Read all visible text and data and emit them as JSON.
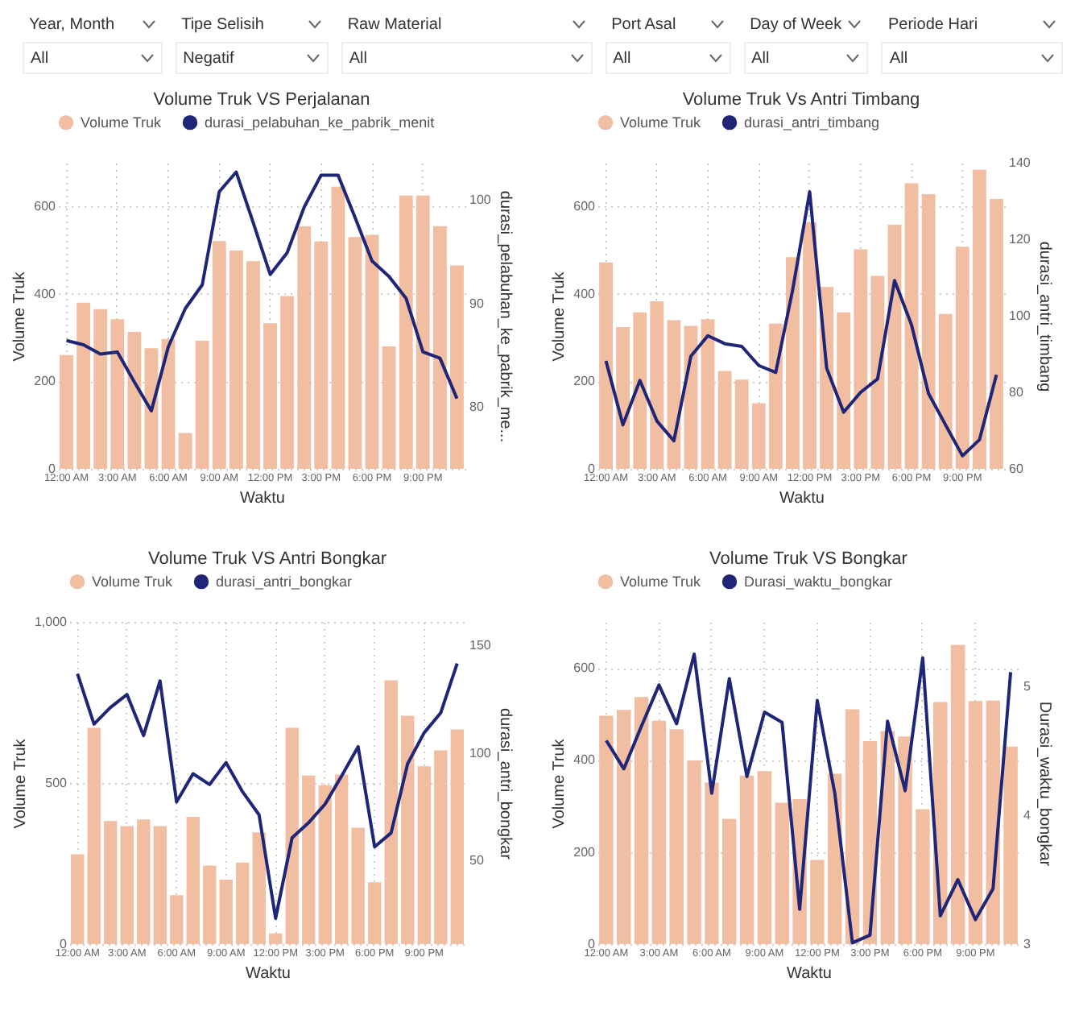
{
  "chart_data": [
    {
      "type": "other",
      "annotations": [
        "Year, Month",
        "All",
        "Tipe Selisih",
        "Negatif",
        "Raw Material",
        "All",
        "Port Asal",
        "All",
        "Day of Week",
        "All",
        "Periode Hari",
        "All"
      ]
    },
    {
      "type": "bar",
      "title": "Volume Truk VS Perjalanan",
      "xlabel": "Waktu",
      "ylabel": "Volume Truk",
      "y2label": "durasi_pelabuhan_ke_pabrik_me...",
      "categories": [
        "12:00 AM",
        null,
        null,
        "3:00 AM",
        null,
        null,
        "6:00 AM",
        null,
        null,
        "9:00 AM",
        null,
        null,
        "12:00 PM",
        null,
        null,
        "3:00 PM",
        null,
        null,
        "6:00 PM",
        null,
        null,
        "9:00 PM",
        null,
        null
      ],
      "ylim": [
        0,
        700
      ],
      "yticks": [
        0,
        200,
        400,
        600
      ],
      "y2lim": [
        74,
        103.6
      ],
      "y2ticks": [
        80,
        90,
        100
      ],
      "grid": true,
      "legend": "top left",
      "series": [
        {
          "name": "Volume Truk",
          "color": "#f2bea2",
          "values": [
            260,
            380,
            365,
            342,
            313,
            276,
            297,
            82,
            293,
            521,
            499,
            475,
            333,
            395,
            555,
            520,
            645,
            530,
            535,
            280,
            625,
            625,
            555,
            465
          ]
        },
        {
          "name": "durasi_pelabuhan_ke_pabrik_menit",
          "type": "line",
          "axis": "y2",
          "color": "#1f2677",
          "values": [
            86.4,
            86.0,
            85.1,
            85.3,
            82.4,
            79.6,
            85.8,
            89.5,
            91.8,
            100.8,
            102.7,
            97.8,
            92.8,
            94.9,
            99.3,
            102.4,
            102.4,
            98.3,
            94.1,
            92.6,
            90.5,
            85.3,
            84.7,
            80.8
          ]
        }
      ]
    },
    {
      "type": "bar",
      "title": "Volume Truk Vs Antri Timbang",
      "xlabel": "Waktu",
      "ylabel": "Volume Truk",
      "y2label": "durasi_antri_timbang",
      "categories": [
        "12:00 AM",
        null,
        null,
        "3:00 AM",
        null,
        null,
        "6:00 AM",
        null,
        null,
        "9:00 AM",
        null,
        null,
        "12:00 PM",
        null,
        null,
        "3:00 PM",
        null,
        null,
        "6:00 PM",
        null,
        null,
        "9:00 PM",
        null,
        null
      ],
      "ylim": [
        0,
        700
      ],
      "yticks": [
        0,
        200,
        400,
        600
      ],
      "y2lim": [
        60,
        140
      ],
      "y2ticks": [
        60,
        80,
        100,
        120,
        140
      ],
      "grid": true,
      "legend": "top left",
      "series": [
        {
          "name": "Volume Truk",
          "color": "#f2bea2",
          "values": [
            472,
            324,
            358,
            383,
            340,
            327,
            342,
            224,
            204,
            150,
            332,
            484,
            564,
            416,
            358,
            502,
            441,
            558,
            653,
            628,
            354,
            508,
            684,
            617
          ]
        },
        {
          "name": "durasi_antri_timbang",
          "type": "line",
          "axis": "y2",
          "color": "#1f2677",
          "values": [
            88.2,
            71.5,
            83.1,
            72.5,
            67.3,
            89.4,
            94.8,
            92.7,
            92.0,
            87.0,
            85.2,
            106.8,
            132.4,
            86.3,
            74.8,
            80.0,
            83.5,
            109.2,
            97.6,
            79.7,
            71.5,
            63.4,
            67.6,
            84.6
          ]
        }
      ]
    },
    {
      "type": "bar",
      "title": "Volume Truk VS Antri Bongkar",
      "xlabel": "Waktu",
      "ylabel": "Volume Truk",
      "y2label": "durasi_antri_bongkar",
      "categories": [
        "12:00 AM",
        null,
        null,
        "3:00 AM",
        null,
        null,
        "6:00 AM",
        null,
        null,
        "9:00 AM",
        null,
        null,
        "12:00 PM",
        null,
        null,
        "3:00 PM",
        null,
        null,
        "6:00 PM",
        null,
        null,
        "9:00 PM",
        null,
        null
      ],
      "ylim": [
        0,
        1000
      ],
      "yticks": [
        0,
        500,
        {
          "value": 1000,
          "label": "1,000"
        }
      ],
      "y2lim": [
        11,
        161
      ],
      "y2ticks": [
        50,
        100,
        150
      ],
      "grid": true,
      "legend": "top left",
      "series": [
        {
          "name": "Volume Truk",
          "color": "#f2bea2",
          "values": [
            279,
            671,
            382,
            366,
            387,
            366,
            152,
            395,
            244,
            200,
            253,
            347,
            33,
            671,
            523,
            493,
            526,
            361,
            192,
            819,
            709,
            552,
            601,
            666
          ]
        },
        {
          "name": "durasi_antri_bongkar",
          "type": "line",
          "axis": "y2",
          "color": "#1f2677",
          "values": [
            136.9,
            113.4,
            121.2,
            127.2,
            108.1,
            133.5,
            77.2,
            90.3,
            85.3,
            95.5,
            81.9,
            71.2,
            23.0,
            60.5,
            67.5,
            76.2,
            89.3,
            102.9,
            56.3,
            62.8,
            95.0,
            109.4,
            118.6,
            141.6
          ]
        }
      ]
    },
    {
      "type": "bar",
      "title": "Volume Truk VS Bongkar",
      "xlabel": "Waktu",
      "ylabel": "Volume Truk",
      "y2label": "Durasi_waktu_bongkar",
      "categories": [
        "12:00 AM",
        null,
        null,
        "3:00 AM",
        null,
        null,
        "6:00 AM",
        null,
        null,
        "9:00 AM",
        null,
        null,
        "12:00 PM",
        null,
        null,
        "3:00 PM",
        null,
        null,
        "6:00 PM",
        null,
        null,
        "9:00 PM",
        null,
        null
      ],
      "ylim": [
        0,
        700
      ],
      "yticks": [
        0,
        200,
        400,
        600
      ],
      "y2lim": [
        3,
        5.5
      ],
      "y2ticks": [
        3,
        4,
        5
      ],
      "grid": true,
      "legend": "top left",
      "series": [
        {
          "name": "Volume Truk",
          "color": "#f2bea2",
          "values": [
            496,
            509,
            537,
            485,
            467,
            399,
            351,
            272,
            366,
            376,
            307,
            315,
            183,
            370,
            510,
            441,
            463,
            451,
            293,
            526,
            650,
            528,
            529,
            429
          ]
        },
        {
          "name": "Durasi_waktu_bongkar",
          "type": "line",
          "axis": "y2",
          "color": "#1f2677",
          "values": [
            4.58,
            4.36,
            4.69,
            5.01,
            4.71,
            5.25,
            4.17,
            5.06,
            4.3,
            4.8,
            4.72,
            3.27,
            4.89,
            4.17,
            3.01,
            3.07,
            4.73,
            4.19,
            5.22,
            3.22,
            3.5,
            3.19,
            3.43,
            5.11
          ]
        }
      ]
    }
  ]
}
